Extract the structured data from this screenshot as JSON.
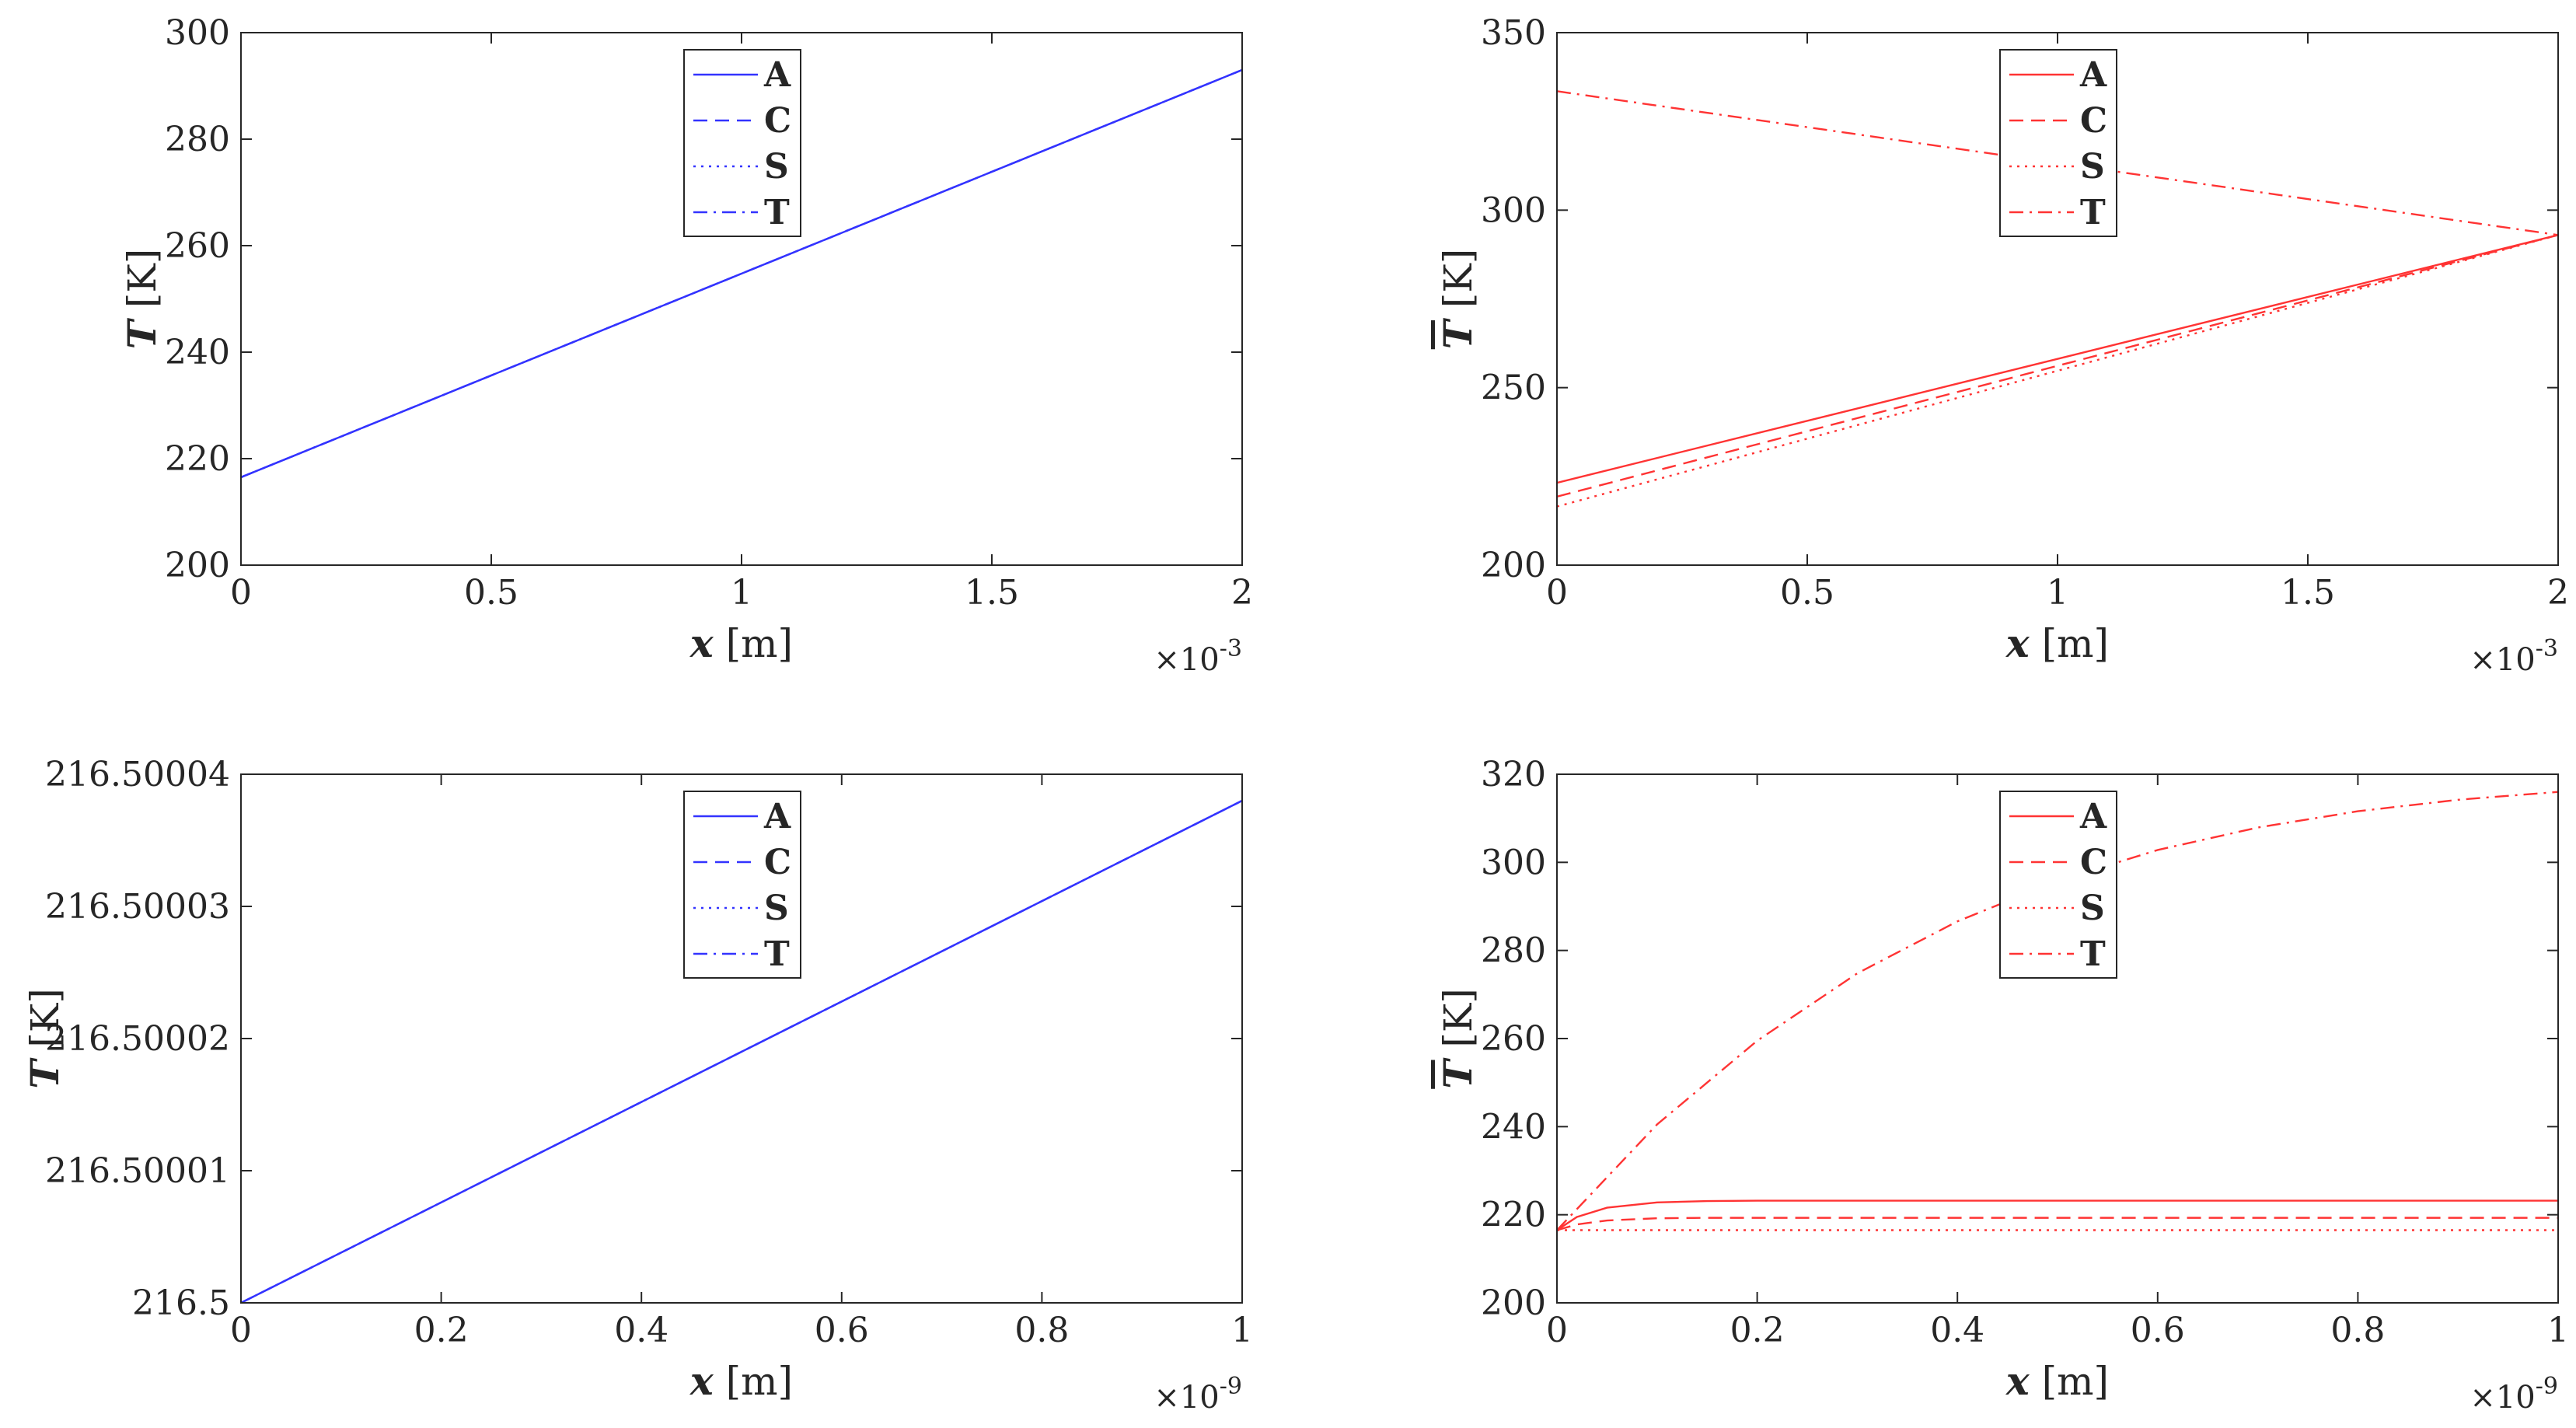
{
  "chart_data": [
    {
      "type": "line",
      "xlabel": "x",
      "xunit": " [m]",
      "ylabel": "T",
      "yunit": " [K]",
      "ybar": false,
      "xlim": [
        0,
        2
      ],
      "ylim": [
        200,
        300
      ],
      "xticks": [
        0,
        0.5,
        1,
        1.5,
        2
      ],
      "xticklabels": [
        "0",
        "0.5",
        "1",
        "1.5",
        "2"
      ],
      "yticks": [
        200,
        220,
        240,
        260,
        280,
        300
      ],
      "yticklabels": [
        "200",
        "220",
        "240",
        "260",
        "280",
        "300"
      ],
      "xexponent": "-3",
      "color": "#3333ff",
      "legend": [
        "A",
        "C",
        "S",
        "T"
      ],
      "series": [
        {
          "name": "A",
          "x": [
            0,
            2
          ],
          "y": [
            216.5,
            293
          ]
        },
        {
          "name": "C",
          "x": [
            0,
            2
          ],
          "y": [
            216.5,
            293
          ]
        },
        {
          "name": "S",
          "x": [
            0,
            2
          ],
          "y": [
            216.5,
            293
          ]
        },
        {
          "name": "T",
          "x": [
            0,
            2
          ],
          "y": [
            216.5,
            293
          ]
        }
      ]
    },
    {
      "type": "line",
      "xlabel": "x",
      "xunit": " [m]",
      "ylabel": "T",
      "yunit": " [K]",
      "ybar": true,
      "xlim": [
        0,
        2
      ],
      "ylim": [
        200,
        350
      ],
      "xticks": [
        0,
        0.5,
        1,
        1.5,
        2
      ],
      "xticklabels": [
        "0",
        "0.5",
        "1",
        "1.5",
        "2"
      ],
      "yticks": [
        200,
        250,
        300,
        350
      ],
      "yticklabels": [
        "200",
        "250",
        "300",
        "350"
      ],
      "xexponent": "-3",
      "color": "#ff3333",
      "legend": [
        "A",
        "C",
        "S",
        "T"
      ],
      "series": [
        {
          "name": "A",
          "x": [
            0,
            2
          ],
          "y": [
            223.2,
            293
          ]
        },
        {
          "name": "C",
          "x": [
            0,
            2
          ],
          "y": [
            219.3,
            293
          ]
        },
        {
          "name": "S",
          "x": [
            0,
            2
          ],
          "y": [
            216.5,
            293
          ]
        },
        {
          "name": "T",
          "x": [
            0,
            2
          ],
          "y": [
            333.5,
            293
          ]
        }
      ]
    },
    {
      "type": "line",
      "xlabel": "x",
      "xunit": " [m]",
      "ylabel": "T",
      "yunit": " [K]",
      "ybar": false,
      "xlim": [
        0,
        1
      ],
      "ylim": [
        216.5,
        216.50004
      ],
      "xticks": [
        0,
        0.2,
        0.4,
        0.6,
        0.8,
        1
      ],
      "xticklabels": [
        "0",
        "0.2",
        "0.4",
        "0.6",
        "0.8",
        "1"
      ],
      "yticks": [
        216.5,
        216.50001,
        216.50002,
        216.50003,
        216.50004
      ],
      "yticklabels": [
        "216.5",
        "216.50001",
        "216.50002",
        "216.50003",
        "216.50004"
      ],
      "xexponent": "-9",
      "color": "#3333ff",
      "legend": [
        "A",
        "C",
        "S",
        "T"
      ],
      "series": [
        {
          "name": "A",
          "x": [
            0,
            1
          ],
          "y": [
            216.5,
            216.500038
          ]
        },
        {
          "name": "C",
          "x": [
            0,
            1
          ],
          "y": [
            216.5,
            216.500038
          ]
        },
        {
          "name": "S",
          "x": [
            0,
            1
          ],
          "y": [
            216.5,
            216.500038
          ]
        },
        {
          "name": "T",
          "x": [
            0,
            1
          ],
          "y": [
            216.5,
            216.500038
          ]
        }
      ]
    },
    {
      "type": "line",
      "xlabel": "x",
      "xunit": " [m]",
      "ylabel": "T",
      "yunit": " [K]",
      "ybar": true,
      "xlim": [
        0,
        1
      ],
      "ylim": [
        200,
        320
      ],
      "xticks": [
        0,
        0.2,
        0.4,
        0.6,
        0.8,
        1
      ],
      "xticklabels": [
        "0",
        "0.2",
        "0.4",
        "0.6",
        "0.8",
        "1"
      ],
      "yticks": [
        200,
        220,
        240,
        260,
        280,
        300,
        320
      ],
      "yticklabels": [
        "200",
        "220",
        "240",
        "260",
        "280",
        "300",
        "320"
      ],
      "xexponent": "-9",
      "color": "#ff3333",
      "legend": [
        "A",
        "C",
        "S",
        "T"
      ],
      "series": [
        {
          "name": "A",
          "x": [
            0,
            0.02,
            0.05,
            0.1,
            0.15,
            0.2,
            0.4,
            0.6,
            0.8,
            1
          ],
          "y": [
            216.5,
            219.5,
            221.6,
            222.8,
            223.1,
            223.2,
            223.2,
            223.2,
            223.2,
            223.2
          ]
        },
        {
          "name": "C",
          "x": [
            0,
            0.02,
            0.05,
            0.1,
            0.15,
            0.2,
            0.4,
            0.6,
            0.8,
            1
          ],
          "y": [
            216.5,
            217.8,
            218.7,
            219.2,
            219.3,
            219.3,
            219.3,
            219.3,
            219.3,
            219.3
          ]
        },
        {
          "name": "S",
          "x": [
            0,
            0.2,
            0.4,
            0.6,
            0.8,
            1
          ],
          "y": [
            216.5,
            216.5,
            216.5,
            216.5,
            216.5,
            216.5
          ]
        },
        {
          "name": "T",
          "x": [
            0,
            0.1,
            0.2,
            0.3,
            0.4,
            0.5,
            0.6,
            0.7,
            0.8,
            0.9,
            1
          ],
          "y": [
            216.5,
            240.5,
            259.5,
            274.8,
            286.6,
            295.8,
            302.8,
            307.9,
            311.6,
            314.2,
            316
          ]
        }
      ]
    }
  ]
}
